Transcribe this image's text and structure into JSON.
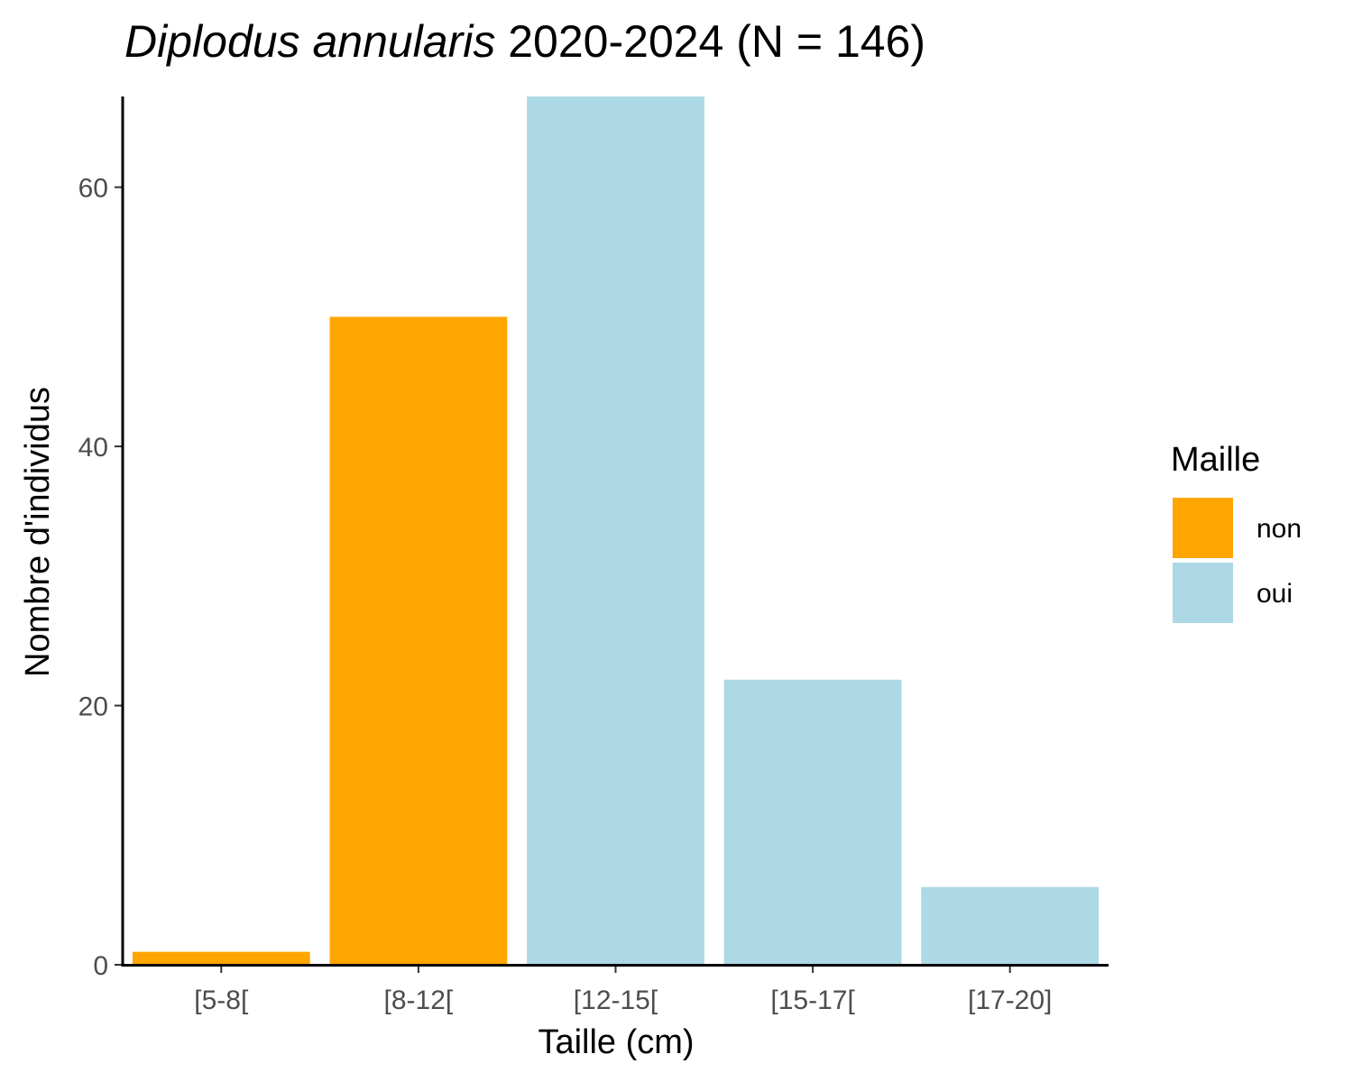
{
  "chart_data": {
    "type": "bar",
    "title_italic": "Diplodus annularis",
    "title_rest": " 2020-2024 (N = 146)",
    "xlabel": "Taille (cm)",
    "ylabel": "Nombre d'individus",
    "categories": [
      "[5-8[",
      "[8-12[",
      "[12-15[",
      "[15-17[",
      "[17-20]"
    ],
    "values": [
      1,
      50,
      67,
      22,
      6
    ],
    "groups": [
      "non",
      "non",
      "oui",
      "oui",
      "oui"
    ],
    "ylim": [
      0,
      67
    ],
    "yticks": [
      0,
      20,
      40,
      60
    ],
    "grid": false,
    "legend": {
      "title": "Maille",
      "position": "right",
      "items": [
        {
          "label": "non",
          "color": "#FFA500"
        },
        {
          "label": "oui",
          "color": "#ADD8E6"
        }
      ]
    }
  }
}
